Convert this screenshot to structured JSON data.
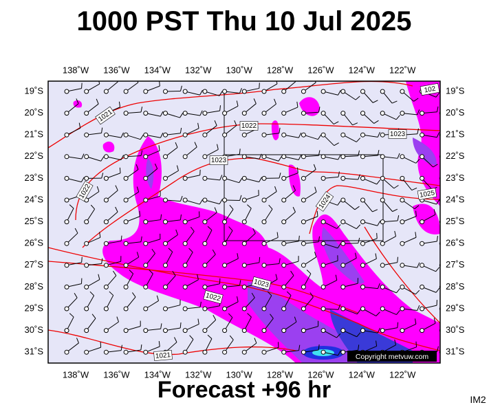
{
  "header": {
    "title": "1000 PST Thu 10 Jul 2025"
  },
  "footer": {
    "forecast": "Forecast +96 hr",
    "code": "IM2"
  },
  "map": {
    "lon_labels": [
      "138˚W",
      "136˚W",
      "134˚W",
      "132˚W",
      "130˚W",
      "128˚W",
      "126˚W",
      "124˚W",
      "122˚W"
    ],
    "lat_labels": [
      "19˚S",
      "20˚S",
      "21˚S",
      "22˚S",
      "23˚S",
      "24˚S",
      "25˚S",
      "26˚S",
      "27˚S",
      "28˚S",
      "29˚S",
      "30˚S",
      "31˚S"
    ],
    "isobar_labels": [
      "1021",
      "1022",
      "1023",
      "1023",
      "1024",
      "1025",
      "1022",
      "1023",
      "1022",
      "1021",
      "102"
    ],
    "copyright": "Copyright metvuw.com"
  }
}
